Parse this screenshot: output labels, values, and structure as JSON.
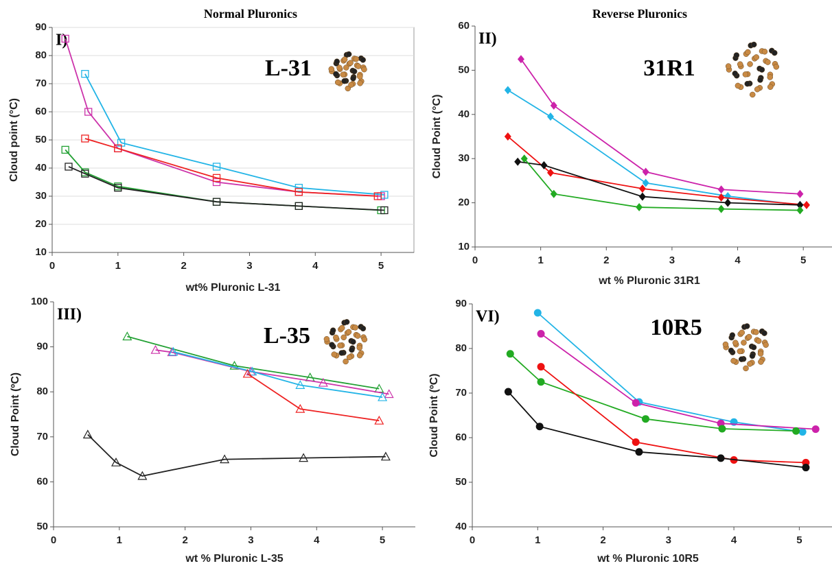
{
  "chart_data": [
    {
      "type": "line",
      "title": "Normal Pluronics",
      "panel_label": "I)",
      "annotation": "L-31",
      "xlabel": "wt% Pluronic L-31",
      "ylabel": "Cloud point (°C)",
      "marker": "open-square",
      "grid": true,
      "xlim": [
        0,
        5.5
      ],
      "xticks": [
        0,
        1,
        2,
        3,
        4,
        5
      ],
      "ylim": [
        10,
        90
      ],
      "yticks": [
        10,
        20,
        30,
        40,
        50,
        60,
        70,
        80,
        90
      ],
      "series": [
        {
          "color": "#cc33aa",
          "x": [
            0.2,
            0.55,
            1.0,
            2.5,
            3.75,
            5.0
          ],
          "values": [
            86,
            60,
            47,
            35,
            31.5,
            30
          ]
        },
        {
          "color": "#22b4e6",
          "x": [
            0.5,
            1.05,
            2.5,
            3.75,
            5.05
          ],
          "values": [
            73.5,
            49,
            40.5,
            33,
            30.5
          ]
        },
        {
          "color": "#ee2222",
          "x": [
            0.5,
            1.0,
            2.5,
            3.75,
            4.95
          ],
          "values": [
            50.5,
            47,
            36.5,
            31.5,
            30
          ]
        },
        {
          "color": "#22a033",
          "x": [
            0.2,
            0.5,
            1.0,
            2.5,
            3.75,
            5.0
          ],
          "values": [
            46.5,
            38.5,
            33.5,
            28,
            26.5,
            25
          ]
        },
        {
          "color": "#222222",
          "x": [
            0.25,
            0.5,
            1.0,
            2.5,
            3.75,
            5.05
          ],
          "values": [
            40.5,
            38,
            33,
            28,
            26.5,
            25
          ]
        }
      ]
    },
    {
      "type": "line",
      "title": "Reverse Pluronics",
      "panel_label": "II)",
      "annotation": "31R1",
      "xlabel": "wt % Pluronic 31R1",
      "ylabel": "Cloud Point (°C)",
      "marker": "diamond",
      "grid": false,
      "xlim": [
        0,
        5.5
      ],
      "xticks": [
        0,
        1,
        2,
        3,
        4,
        5
      ],
      "ylim": [
        10,
        60
      ],
      "yticks": [
        10,
        20,
        30,
        40,
        50,
        60
      ],
      "series": [
        {
          "color": "#cc22aa",
          "x": [
            0.7,
            1.2,
            2.6,
            3.75,
            4.95
          ],
          "values": [
            52.5,
            42,
            27,
            23,
            22
          ]
        },
        {
          "color": "#22b4e6",
          "x": [
            0.5,
            1.15,
            2.6,
            3.85,
            4.95
          ],
          "values": [
            45.5,
            39.5,
            24.5,
            21.5,
            19.5
          ]
        },
        {
          "color": "#ee1111",
          "x": [
            0.5,
            1.15,
            2.55,
            3.75,
            5.05
          ],
          "values": [
            35,
            26.8,
            23.2,
            21.2,
            19.5
          ]
        },
        {
          "color": "#111111",
          "x": [
            0.65,
            1.05,
            2.55,
            3.85,
            4.95
          ],
          "values": [
            29.3,
            28.5,
            21.4,
            20,
            19.5
          ]
        },
        {
          "color": "#22aa22",
          "x": [
            0.75,
            1.2,
            2.5,
            3.75,
            4.95
          ],
          "values": [
            30,
            22,
            19,
            18.6,
            18.3
          ]
        }
      ]
    },
    {
      "type": "line",
      "panel_label": "III)",
      "annotation": "L-35",
      "xlabel": "wt % Pluronic L-35",
      "ylabel": "Cloud Point (ºC)",
      "marker": "open-triangle",
      "grid": false,
      "xlim": [
        0,
        5.5
      ],
      "xticks": [
        0,
        1,
        2,
        3,
        4,
        5
      ],
      "ylim": [
        50,
        100
      ],
      "yticks": [
        50,
        60,
        70,
        80,
        90,
        100
      ],
      "series": [
        {
          "color": "#22a033",
          "x": [
            1.12,
            2.75,
            3.9,
            4.95
          ],
          "values": [
            92.3,
            85.8,
            83.2,
            80.7
          ]
        },
        {
          "color": "#cc33aa",
          "x": [
            1.55,
            1.8,
            3.0,
            4.1,
            5.1
          ],
          "values": [
            89.3,
            88.8,
            84.5,
            82,
            79.5
          ]
        },
        {
          "color": "#22b4e6",
          "x": [
            1.82,
            3.02,
            3.75,
            5.0
          ],
          "values": [
            88.9,
            84.5,
            81.5,
            78.8
          ]
        },
        {
          "color": "#ee2222",
          "x": [
            2.95,
            3.75,
            4.95
          ],
          "values": [
            84,
            76.2,
            73.6
          ]
        },
        {
          "color": "#222222",
          "x": [
            0.52,
            0.95,
            1.35,
            2.6,
            3.8,
            5.05
          ],
          "values": [
            70.5,
            64.3,
            61.3,
            65,
            65.3,
            65.6
          ]
        }
      ]
    },
    {
      "type": "line",
      "panel_label": "VI)",
      "annotation": "10R5",
      "xlabel": "wt % Pluronic 10R5",
      "ylabel": "Cloud Point (ºC)",
      "marker": "circle",
      "grid": false,
      "xlim": [
        0,
        5.5
      ],
      "xticks": [
        0,
        1,
        2,
        3,
        4,
        5
      ],
      "ylim": [
        40,
        90
      ],
      "yticks": [
        40,
        50,
        60,
        70,
        80,
        90
      ],
      "series": [
        {
          "color": "#22b4e6",
          "x": [
            1.0,
            2.55,
            4.0,
            5.05
          ],
          "values": [
            88,
            68,
            63.5,
            61.3
          ]
        },
        {
          "color": "#cc22aa",
          "x": [
            1.05,
            2.5,
            3.8,
            5.25
          ],
          "values": [
            83.3,
            67.8,
            63.2,
            61.9
          ]
        },
        {
          "color": "#22aa22",
          "x": [
            0.58,
            1.05,
            2.65,
            3.82,
            4.95
          ],
          "values": [
            78.8,
            72.5,
            64.2,
            62,
            61.5
          ]
        },
        {
          "color": "#ee1111",
          "x": [
            1.05,
            2.5,
            4.0,
            5.1
          ],
          "values": [
            75.9,
            59,
            55,
            54.4
          ]
        },
        {
          "color": "#111111",
          "x": [
            0.55,
            1.03,
            2.55,
            3.8,
            5.1
          ],
          "values": [
            70.3,
            62.5,
            56.8,
            55.4,
            53.3
          ]
        }
      ]
    }
  ]
}
